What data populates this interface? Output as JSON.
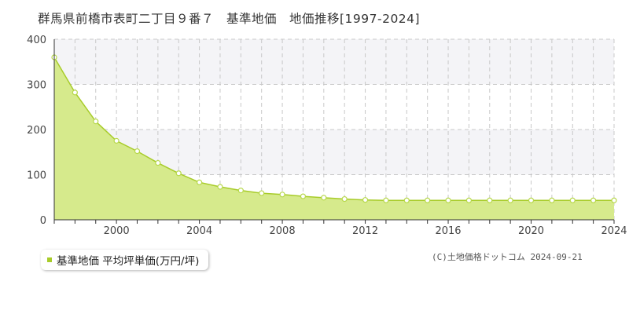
{
  "page": {
    "title": "群馬県前橋市表町二丁目９番７　基準地価　地価推移[1997-2024]",
    "credit": "(C)土地価格ドットコム 2024-09-21"
  },
  "legend": {
    "label": "基準地価 平均坪単価(万円/坪)",
    "color": "#a8cc2a"
  },
  "colors": {
    "area_fill": "#d6ea8c",
    "line": "#a8cc2a",
    "marker_stroke": "#b7d84a",
    "marker_fill": "#ffffff",
    "grid": "#c8c8c8",
    "band": "#f4f4f7"
  },
  "chart_data": {
    "type": "area",
    "x": [
      1997,
      1998,
      1999,
      2000,
      2001,
      2002,
      2003,
      2004,
      2005,
      2006,
      2007,
      2008,
      2009,
      2010,
      2011,
      2012,
      2013,
      2014,
      2015,
      2016,
      2017,
      2018,
      2019,
      2020,
      2021,
      2022,
      2023,
      2024
    ],
    "series": [
      {
        "name": "基準地価 平均坪単価(万円/坪)",
        "values": [
          360,
          282,
          218,
          175,
          152,
          126,
          103,
          83,
          73,
          65,
          59,
          56,
          52,
          49,
          46,
          44,
          43,
          43,
          43,
          43,
          43,
          43,
          43,
          43,
          43,
          43,
          43,
          43
        ]
      }
    ],
    "xlim": [
      1997,
      2024
    ],
    "ylim": [
      0,
      400
    ],
    "yticks": [
      0,
      100,
      200,
      300,
      400
    ],
    "xticks": [
      2000,
      2004,
      2008,
      2012,
      2016,
      2020,
      2024
    ],
    "grid": true,
    "legend_position": "bottom-left"
  }
}
